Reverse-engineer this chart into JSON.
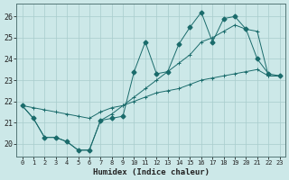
{
  "xlabel": "Humidex (Indice chaleur)",
  "bg_color": "#cce8e8",
  "grid_color": "#a8cccc",
  "line_color": "#1a6b6b",
  "xlim": [
    -0.5,
    23.5
  ],
  "ylim": [
    19.4,
    26.6
  ],
  "xticks": [
    0,
    1,
    2,
    3,
    4,
    5,
    6,
    7,
    8,
    9,
    10,
    11,
    12,
    13,
    14,
    15,
    16,
    17,
    18,
    19,
    20,
    21,
    22,
    23
  ],
  "yticks": [
    20,
    21,
    22,
    23,
    24,
    25,
    26
  ],
  "line1_x": [
    0,
    1,
    2,
    3,
    4,
    5,
    6,
    7,
    8,
    9,
    10,
    11,
    12,
    13,
    14,
    15,
    16,
    17,
    18,
    19,
    20,
    21,
    22,
    23
  ],
  "line1_y": [
    21.8,
    21.7,
    21.6,
    21.5,
    21.4,
    21.3,
    21.2,
    21.5,
    21.7,
    21.8,
    22.0,
    22.2,
    22.4,
    22.5,
    22.6,
    22.8,
    23.0,
    23.1,
    23.2,
    23.3,
    23.4,
    23.5,
    23.2,
    23.2
  ],
  "line2_x": [
    0,
    1,
    2,
    3,
    4,
    5,
    6,
    7,
    8,
    9,
    10,
    11,
    12,
    13,
    14,
    15,
    16,
    17,
    18,
    19,
    20,
    21,
    22,
    23
  ],
  "line2_y": [
    21.8,
    21.2,
    20.3,
    20.3,
    20.1,
    19.7,
    19.7,
    21.1,
    21.2,
    21.3,
    23.4,
    24.8,
    23.3,
    23.4,
    24.7,
    25.5,
    26.2,
    24.8,
    25.9,
    26.0,
    25.4,
    24.0,
    23.3,
    23.2
  ],
  "line3_x": [
    0,
    1,
    2,
    3,
    4,
    5,
    6,
    7,
    8,
    9,
    10,
    11,
    12,
    13,
    14,
    15,
    16,
    17,
    18,
    19,
    20,
    21,
    22,
    23
  ],
  "line3_y": [
    21.8,
    21.2,
    20.3,
    20.3,
    20.1,
    19.7,
    19.7,
    21.1,
    21.4,
    21.8,
    22.2,
    22.6,
    23.0,
    23.4,
    23.8,
    24.2,
    24.8,
    25.0,
    25.3,
    25.6,
    25.4,
    25.3,
    23.2,
    23.2
  ],
  "marker_size": 2.5
}
